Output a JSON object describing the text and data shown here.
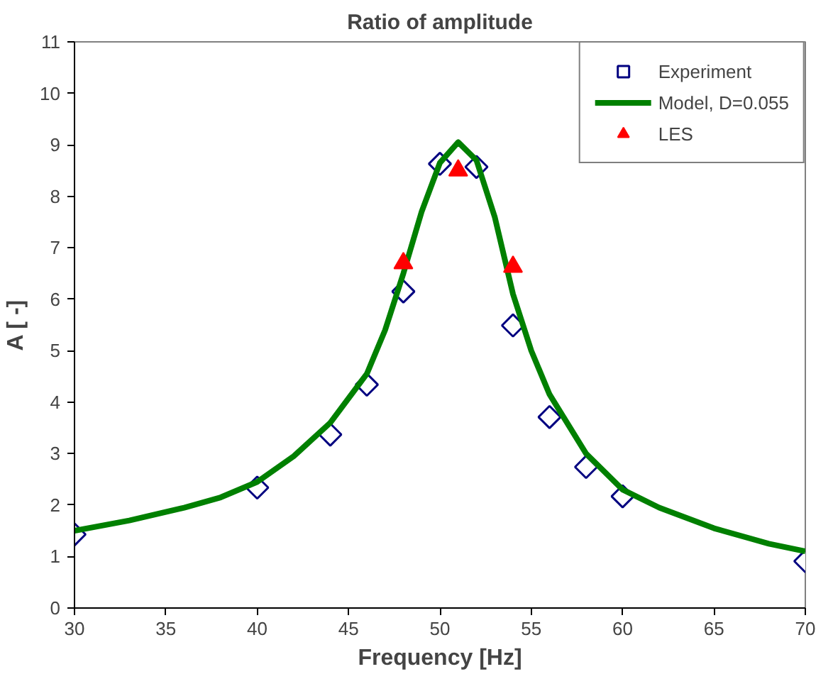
{
  "chart_data": {
    "type": "scatter",
    "title": "Ratio of amplitude",
    "xlabel": "Frequency [Hz]",
    "ylabel": "A [ -]",
    "xlim": [
      30,
      70
    ],
    "ylim": [
      0,
      11
    ],
    "xticks": [
      30,
      35,
      40,
      45,
      50,
      55,
      60,
      65,
      70
    ],
    "yticks": [
      0,
      1,
      2,
      3,
      4,
      5,
      6,
      7,
      8,
      9,
      10,
      11
    ],
    "grid": false,
    "legend": "top right",
    "series": [
      {
        "name": "Experiment",
        "marker": "diamond",
        "color": "#000080",
        "x": [
          30,
          40,
          44,
          46,
          48,
          50,
          52,
          54,
          56,
          58,
          60,
          70
        ],
        "values": [
          1.43,
          2.34,
          3.37,
          4.34,
          6.15,
          8.63,
          8.57,
          5.49,
          3.71,
          2.74,
          2.17,
          0.91
        ]
      },
      {
        "name": "Model, D=0.055",
        "type": "line",
        "marker": "none",
        "line_style": "solid",
        "color": "#008000",
        "x": [
          30,
          33,
          36,
          38,
          40,
          42,
          44,
          46,
          47,
          48,
          49,
          50,
          51,
          52,
          53,
          54,
          55,
          56,
          58,
          60,
          62,
          65,
          68,
          70
        ],
        "values": [
          1.5,
          1.7,
          1.95,
          2.15,
          2.45,
          2.95,
          3.6,
          4.55,
          5.4,
          6.5,
          7.7,
          8.65,
          9.05,
          8.7,
          7.6,
          6.1,
          5.0,
          4.15,
          3.0,
          2.3,
          1.95,
          1.55,
          1.25,
          1.1
        ]
      },
      {
        "name": "LES",
        "marker": "triangle",
        "color": "#ff0000",
        "x": [
          48,
          51,
          54
        ],
        "values": [
          6.7,
          8.5,
          6.63
        ]
      }
    ]
  }
}
